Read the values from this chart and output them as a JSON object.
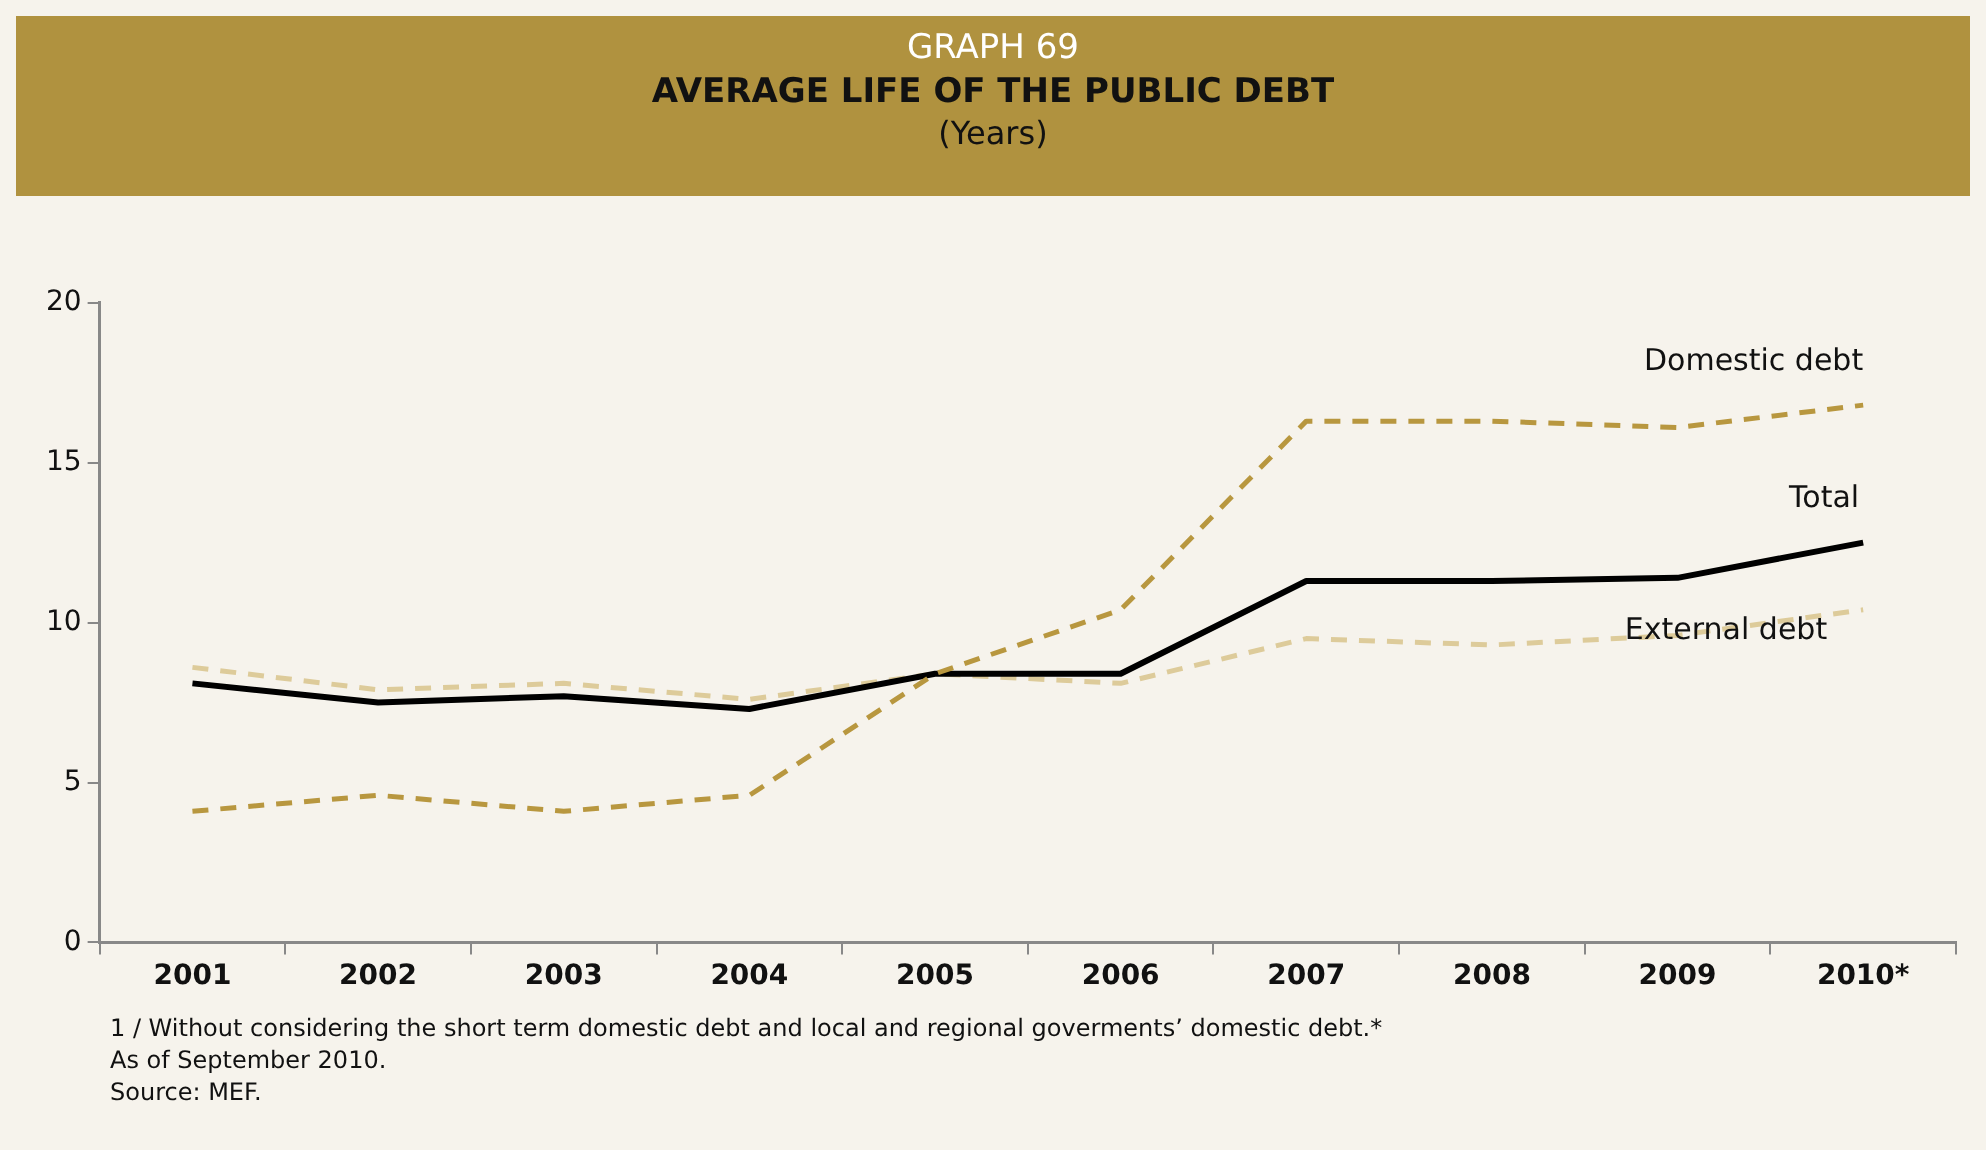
{
  "chart_data": {
    "type": "line",
    "title": "GRAPH 69",
    "subtitle": "AVERAGE LIFE OF THE PUBLIC DEBT",
    "annotations": [
      "(Years)",
      "1 / Without considering the short term domestic debt and local and regional goverments’ domestic debt.*",
      "As of September 2010.",
      "Source: MEF."
    ],
    "categories": [
      "2001",
      "2002",
      "2003",
      "2004",
      "2005",
      "2006",
      "2007",
      "2008",
      "2009",
      "2010*"
    ],
    "series": [
      {
        "name": "Domestic debt",
        "color": "#b8973f",
        "line_style": "dashed",
        "values": [
          4.1,
          4.6,
          4.1,
          4.6,
          8.4,
          10.4,
          16.3,
          16.3,
          16.1,
          16.8
        ]
      },
      {
        "name": "Total",
        "color": "#000000",
        "line_style": "solid",
        "values": [
          8.1,
          7.5,
          7.7,
          7.3,
          8.4,
          8.4,
          11.3,
          11.3,
          11.4,
          12.5
        ]
      },
      {
        "name": "External debt",
        "color": "#ddcb9a",
        "line_style": "dashed",
        "values": [
          8.6,
          7.9,
          8.1,
          7.6,
          8.4,
          8.1,
          9.5,
          9.3,
          9.6,
          10.4
        ]
      }
    ],
    "ylim": [
      0,
      20
    ],
    "yticks": [
      0,
      5,
      10,
      15,
      20
    ],
    "grid": false,
    "legend": false,
    "marker": "none"
  }
}
